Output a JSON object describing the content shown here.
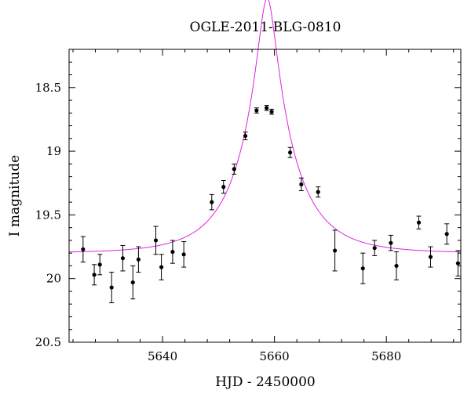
{
  "chart_data": {
    "type": "scatter",
    "title": "OGLE-2011-BLG-0810",
    "xlabel": "HJD - 2450000",
    "ylabel": "I magnitude",
    "xlim": [
      5623.3,
      5693.3
    ],
    "ylim": [
      20.5,
      18.2
    ],
    "y_inverted": true,
    "x_ticks": [
      5640,
      5660,
      5680
    ],
    "x_tick_labels": [
      "5640",
      "5660",
      "5680"
    ],
    "y_ticks": [
      18.5,
      19,
      19.5,
      20,
      20.5
    ],
    "y_tick_labels": [
      "18.5",
      "19",
      "19.5",
      "20",
      "20.5"
    ],
    "grid": false,
    "colors": {
      "points": "#000000",
      "model": "#e020e0"
    },
    "series": [
      {
        "type": "scatter",
        "points": [
          {
            "x": 5625.8,
            "y": 19.77,
            "err": 0.1
          },
          {
            "x": 5627.8,
            "y": 19.97,
            "err": 0.08
          },
          {
            "x": 5628.8,
            "y": 19.89,
            "err": 0.08
          },
          {
            "x": 5630.9,
            "y": 20.07,
            "err": 0.12
          },
          {
            "x": 5632.9,
            "y": 19.84,
            "err": 0.1
          },
          {
            "x": 5634.7,
            "y": 20.03,
            "err": 0.13
          },
          {
            "x": 5635.7,
            "y": 19.85,
            "err": 0.1
          },
          {
            "x": 5638.8,
            "y": 19.7,
            "err": 0.11
          },
          {
            "x": 5639.8,
            "y": 19.91,
            "err": 0.1
          },
          {
            "x": 5641.8,
            "y": 19.79,
            "err": 0.09
          },
          {
            "x": 5643.8,
            "y": 19.81,
            "err": 0.1
          },
          {
            "x": 5648.8,
            "y": 19.4,
            "err": 0.06
          },
          {
            "x": 5650.9,
            "y": 19.28,
            "err": 0.05
          },
          {
            "x": 5652.8,
            "y": 19.14,
            "err": 0.04
          },
          {
            "x": 5654.8,
            "y": 18.88,
            "err": 0.03
          },
          {
            "x": 5656.8,
            "y": 18.68,
            "err": 0.02
          },
          {
            "x": 5658.6,
            "y": 18.66,
            "err": 0.02
          },
          {
            "x": 5659.5,
            "y": 18.69,
            "err": 0.02
          },
          {
            "x": 5662.8,
            "y": 19.01,
            "err": 0.04
          },
          {
            "x": 5664.8,
            "y": 19.26,
            "err": 0.05
          },
          {
            "x": 5667.8,
            "y": 19.32,
            "err": 0.04
          },
          {
            "x": 5670.8,
            "y": 19.78,
            "err": 0.16
          },
          {
            "x": 5675.8,
            "y": 19.92,
            "err": 0.12
          },
          {
            "x": 5677.9,
            "y": 19.76,
            "err": 0.06
          },
          {
            "x": 5680.8,
            "y": 19.72,
            "err": 0.06
          },
          {
            "x": 5681.8,
            "y": 19.9,
            "err": 0.11
          },
          {
            "x": 5685.8,
            "y": 19.56,
            "err": 0.05
          },
          {
            "x": 5687.9,
            "y": 19.83,
            "err": 0.08
          },
          {
            "x": 5690.8,
            "y": 19.65,
            "err": 0.08
          },
          {
            "x": 5692.8,
            "y": 19.88,
            "err": 0.1
          }
        ]
      },
      {
        "type": "line",
        "model": {
          "t0": 5658.7,
          "u0": 0.16,
          "tE": 9.5,
          "I_source": 19.8
        }
      }
    ]
  }
}
